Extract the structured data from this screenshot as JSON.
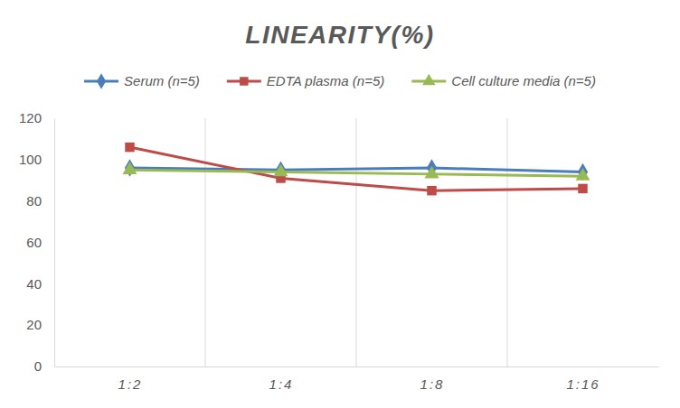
{
  "chart_data": {
    "type": "line",
    "title": "LINEARITY(%)",
    "categories": [
      "1:2",
      "1:4",
      "1:8",
      "1:16"
    ],
    "series": [
      {
        "name": "Serum (n=5)",
        "color": "#4a7ebb",
        "marker": "diamond",
        "values": [
          96,
          95,
          96,
          94
        ]
      },
      {
        "name": "EDTA plasma (n=5)",
        "color": "#be4b48",
        "marker": "square",
        "values": [
          106,
          91,
          85,
          86
        ]
      },
      {
        "name": "Cell culture media (n=5)",
        "color": "#98b954",
        "marker": "triangle",
        "values": [
          95,
          94,
          93,
          92
        ]
      }
    ],
    "ylim": [
      0,
      120
    ],
    "yticks": [
      0,
      20,
      40,
      60,
      80,
      100,
      120
    ],
    "grid": true,
    "legend": "top"
  }
}
